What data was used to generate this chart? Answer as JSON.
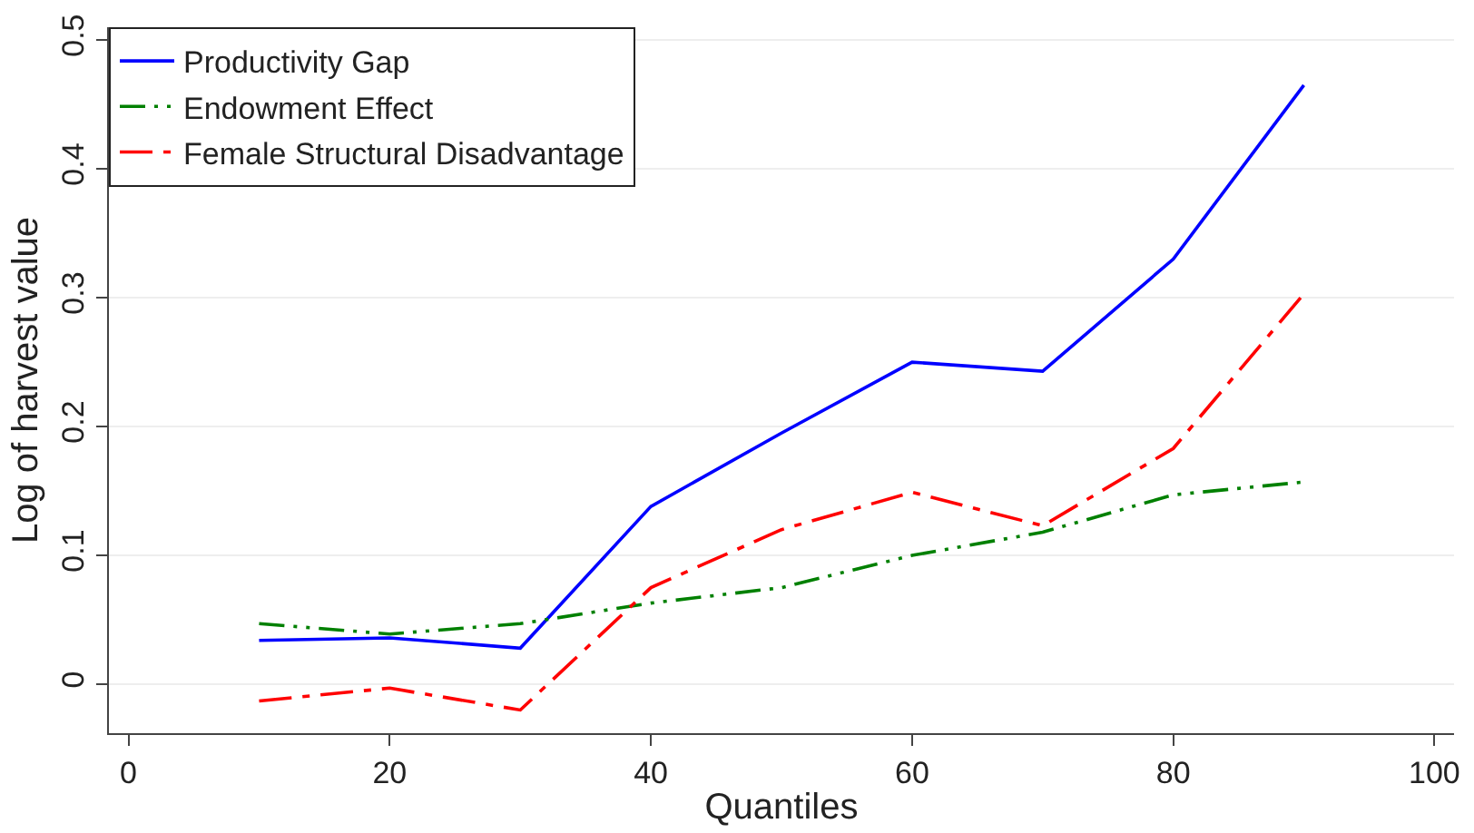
{
  "chart_data": {
    "type": "line",
    "xlabel": "Quantiles",
    "ylabel": "Log of harvest value",
    "x": [
      10,
      20,
      30,
      40,
      50,
      60,
      70,
      80,
      90
    ],
    "series": [
      {
        "name": "Productivity Gap",
        "color": "#0000ff",
        "line_style": "solid",
        "values": [
          0.034,
          0.036,
          0.028,
          0.138,
          0.195,
          0.25,
          0.243,
          0.33,
          0.465
        ]
      },
      {
        "name": "Endowment Effect",
        "color": "#008000",
        "line_style": "dotted",
        "values": [
          0.047,
          0.039,
          0.047,
          0.063,
          0.075,
          0.1,
          0.118,
          0.147,
          0.157
        ]
      },
      {
        "name": "Female Structural Disadvantage",
        "color": "#ff0000",
        "line_style": "dashed",
        "values": [
          -0.013,
          -0.003,
          -0.02,
          0.075,
          0.12,
          0.149,
          0.123,
          0.183,
          0.303
        ]
      }
    ],
    "xlim": [
      -1.5,
      101.5
    ],
    "xticks": [
      0,
      20,
      40,
      60,
      80,
      100
    ],
    "ylim": [
      -0.038,
      0.51
    ],
    "yticks": [
      0,
      0.1,
      0.2,
      0.3,
      0.4,
      0.5
    ],
    "grid": "y",
    "legend": "top left"
  }
}
